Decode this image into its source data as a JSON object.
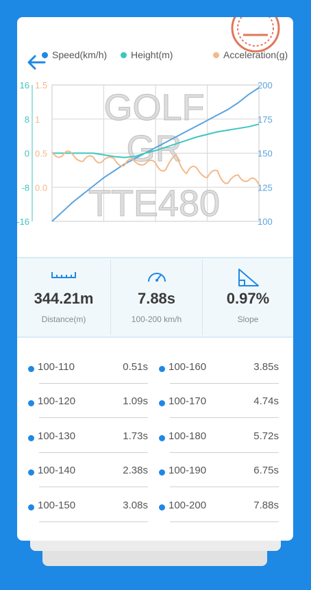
{
  "legend": {
    "speed": "Speed(km/h)",
    "height": "Height(m)",
    "acceleration": "Acceleration(g)"
  },
  "watermark": [
    "GOLF",
    "GR",
    "TTE480"
  ],
  "colors": {
    "background": "#1E88E5",
    "speed": "#5AA3DD",
    "height": "#3CC7BE",
    "acceleration": "#F2B98A"
  },
  "icons": {
    "back": "back-arrow-icon",
    "distance": "ruler-icon",
    "time": "speedometer-icon",
    "slope": "slope-icon"
  },
  "chart_data": {
    "type": "line",
    "x": [
      0,
      1,
      2,
      3,
      4,
      5,
      6,
      7,
      8,
      9,
      10,
      11,
      12,
      13,
      14,
      15,
      16,
      17,
      18,
      19,
      20
    ],
    "axes": {
      "height_left": {
        "ticks": [
          "16",
          "8",
          "0",
          "-8",
          "-16"
        ],
        "range": [
          -16,
          16
        ]
      },
      "acceleration": {
        "ticks": [
          "1.5",
          "1",
          "0.5",
          "0.0"
        ],
        "range": [
          -0.5,
          1.5
        ]
      },
      "speed_right": {
        "ticks": [
          "200",
          "175",
          "150",
          "125",
          "100"
        ],
        "range": [
          100,
          200
        ]
      }
    },
    "series": [
      {
        "name": "Speed(km/h)",
        "axis": "speed_right",
        "values": [
          100,
          107,
          114,
          120,
          126,
          132,
          137,
          142,
          146,
          150,
          154,
          158,
          162,
          166,
          170,
          174,
          178,
          182,
          187,
          193,
          198
        ]
      },
      {
        "name": "Height(m)",
        "axis": "height_left",
        "values": [
          0,
          0,
          0,
          0,
          0,
          -0.4,
          -0.8,
          -1,
          -0.8,
          0,
          0.6,
          1.4,
          2.2,
          3,
          3.8,
          4.4,
          5,
          5.4,
          5.8,
          6.2,
          6.8
        ]
      },
      {
        "name": "Acceleration(g)",
        "axis": "acceleration",
        "values": [
          0.52,
          0.46,
          0.48,
          0.38,
          0.44,
          0.4,
          0.42,
          0.32,
          0.38,
          0.34,
          0.36,
          0.26,
          0.48,
          0.2,
          0.28,
          0.14,
          0.24,
          0.06,
          0.18,
          0.1,
          0.04
        ]
      }
    ]
  },
  "stats": [
    {
      "value": "344.21m",
      "label": "Distance(m)"
    },
    {
      "value": "7.88s",
      "label": "100-200 km/h"
    },
    {
      "value": "0.97%",
      "label": "Slope"
    }
  ],
  "splits": [
    {
      "range": "100-110",
      "time": "0.51s"
    },
    {
      "range": "100-160",
      "time": "3.85s"
    },
    {
      "range": "100-120",
      "time": "1.09s"
    },
    {
      "range": "100-170",
      "time": "4.74s"
    },
    {
      "range": "100-130",
      "time": "1.73s"
    },
    {
      "range": "100-180",
      "time": "5.72s"
    },
    {
      "range": "100-140",
      "time": "2.38s"
    },
    {
      "range": "100-190",
      "time": "6.75s"
    },
    {
      "range": "100-150",
      "time": "3.08s"
    },
    {
      "range": "100-200",
      "time": "7.88s"
    }
  ]
}
